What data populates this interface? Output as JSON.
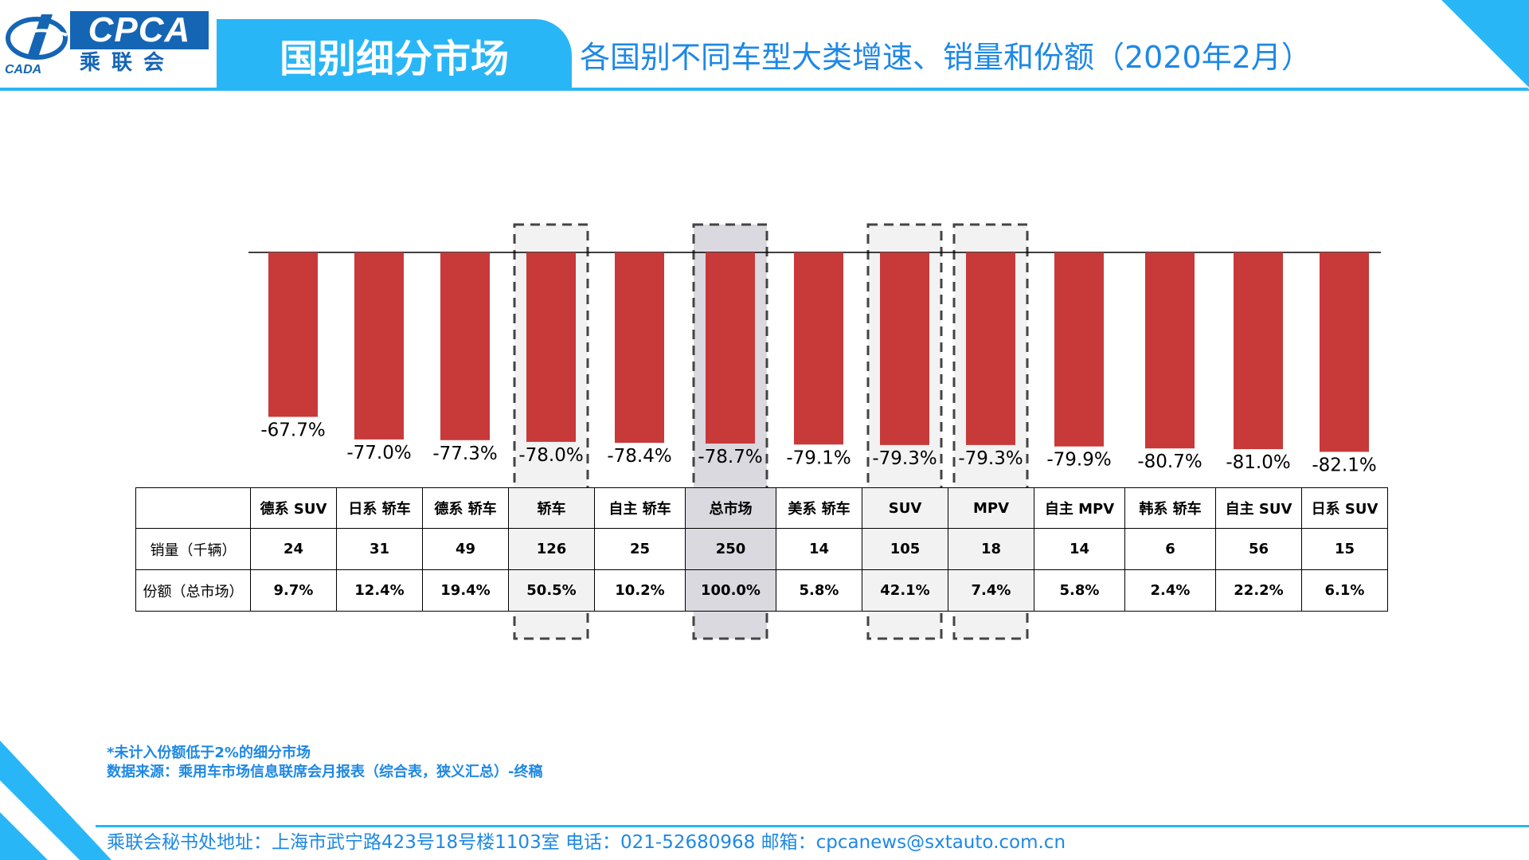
{
  "header": {
    "logo_text": "CPCA",
    "logo_cn": "乘联会",
    "logo_sub": "CADA",
    "section_title": "国别细分市场",
    "slide_title": "各国别不同车型大类增速、销量和份额（2020年2月）"
  },
  "colors": {
    "bar": "#c8393a",
    "accent_blue": "#29b6f6",
    "title_blue": "#1e88e5",
    "highlight_light": "#f2f2f2",
    "highlight_total": "#d9d9df"
  },
  "chart_data": {
    "type": "bar",
    "categories": [
      "德系 SUV",
      "日系 轿车",
      "德系 轿车",
      "轿车",
      "自主 轿车",
      "总市场",
      "美系 轿车",
      "SUV",
      "MPV",
      "自主 MPV",
      "韩系 轿车",
      "自主 SUV",
      "日系 SUV"
    ],
    "values": [
      -67.7,
      -77.0,
      -77.3,
      -78.0,
      -78.4,
      -78.7,
      -79.1,
      -79.3,
      -79.3,
      -79.9,
      -80.7,
      -81.0,
      -82.1
    ],
    "value_labels": [
      "-67.7%",
      "-77.0%",
      "-77.3%",
      "-78.0%",
      "-78.4%",
      "-78.7%",
      "-79.1%",
      "-79.3%",
      "-79.3%",
      "-79.9%",
      "-80.7%",
      "-81.0%",
      "-82.1%"
    ],
    "highlighted": [
      "轿车",
      "总市场",
      "SUV",
      "MPV"
    ],
    "ylim": [
      -100,
      0
    ],
    "title": "",
    "xlabel": "",
    "ylabel": ""
  },
  "table": {
    "row_labels": [
      "销量（千辆）",
      "份额（总市场）"
    ],
    "sales": [
      "24",
      "31",
      "49",
      "126",
      "25",
      "250",
      "14",
      "105",
      "18",
      "14",
      "6",
      "56",
      "15"
    ],
    "shares": [
      "9.7%",
      "12.4%",
      "19.4%",
      "50.5%",
      "10.2%",
      "100.0%",
      "5.8%",
      "42.1%",
      "7.4%",
      "5.8%",
      "2.4%",
      "22.2%",
      "6.1%"
    ]
  },
  "notes": {
    "footnote": "*未计入份额低于2%的细分市场",
    "source": "数据来源：乘用车市场信息联席会月报表（综合表，狭义汇总）-终稿"
  },
  "footer": {
    "text": "乘联会秘书处地址：上海市武宁路423号18号楼1103室   电话：021-52680968    邮箱：cpcanews@sxtauto.com.cn"
  }
}
